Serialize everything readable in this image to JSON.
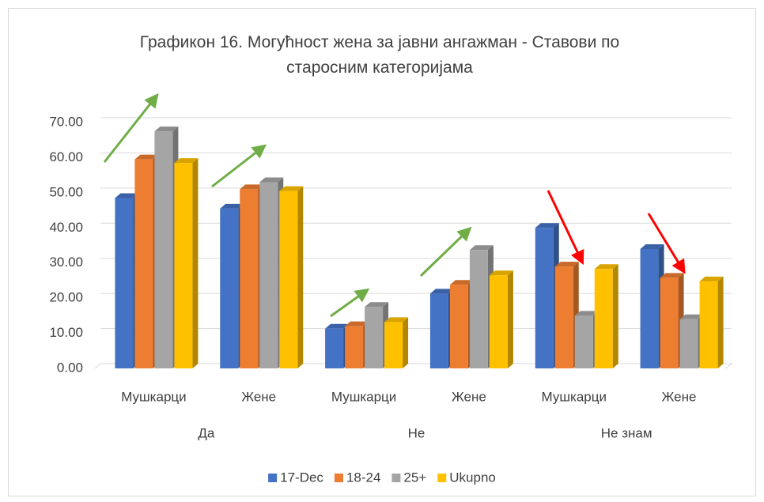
{
  "chart_data": {
    "type": "bar3d",
    "title": "Графикон 16. Могућност жена за јавни ангажман - Ставови по старосним категоријама",
    "categories": [
      "Мушкарци",
      "Жене",
      "Мушкарци",
      "Жене",
      "Мушкарци",
      "Жене"
    ],
    "category_groups": [
      "Да",
      "Не",
      "Не знам"
    ],
    "series": [
      {
        "name": "17-Dec",
        "color": "#4472c4",
        "values": [
          48.5,
          45.5,
          11.3,
          21.3,
          40.0,
          34.0
        ]
      },
      {
        "name": "18-24",
        "color": "#ed7d31",
        "values": [
          59.5,
          51.0,
          12.0,
          23.8,
          29.0,
          25.8
        ]
      },
      {
        "name": "25+",
        "color": "#a5a5a5",
        "values": [
          67.5,
          53.0,
          17.5,
          33.7,
          15.0,
          14.0
        ]
      },
      {
        "name": "Ukupno",
        "color": "#ffc000",
        "values": [
          58.5,
          50.5,
          13.2,
          26.5,
          28.3,
          24.8
        ]
      }
    ],
    "ylim": [
      0,
      70
    ],
    "yticks": [
      {
        "value": 0,
        "label": "0.00"
      },
      {
        "value": 10,
        "label": "10.00"
      },
      {
        "value": 20,
        "label": "20.00"
      },
      {
        "value": 30,
        "label": "30.00"
      },
      {
        "value": 40,
        "label": "40.00"
      },
      {
        "value": 50,
        "label": "50.00"
      },
      {
        "value": 60,
        "label": "60.00"
      },
      {
        "value": 70,
        "label": "70.00"
      }
    ],
    "grid": true,
    "legend": "bottom"
  }
}
